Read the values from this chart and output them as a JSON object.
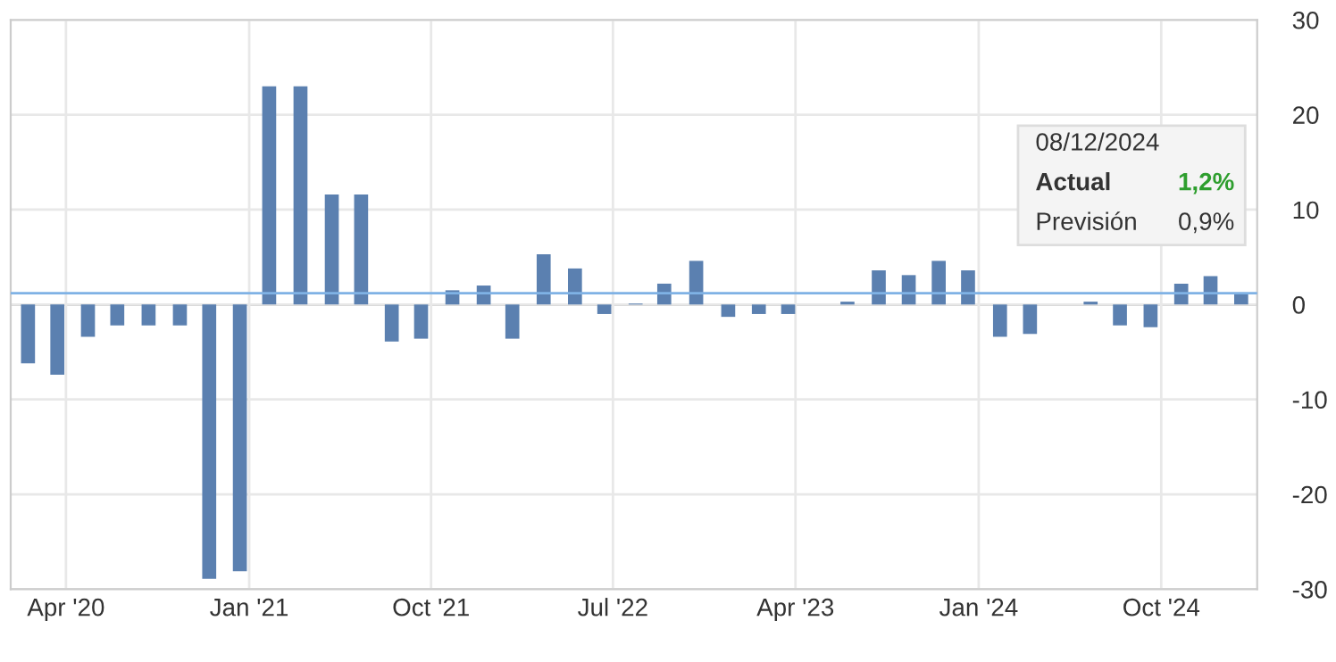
{
  "chart_data": {
    "type": "bar",
    "x": [
      "2020-02-04",
      "2020-03-19",
      "2020-05-04",
      "2020-06-17",
      "2020-08-03",
      "2020-09-19",
      "2020-11-02",
      "2020-12-18",
      "2021-01-31",
      "2021-03-19",
      "2021-05-05",
      "2021-06-18",
      "2021-08-03",
      "2021-09-16",
      "2021-11-02",
      "2021-12-19",
      "2022-01-31",
      "2022-03-19",
      "2022-05-05",
      "2022-06-18",
      "2022-08-04",
      "2022-09-16",
      "2022-11-03",
      "2022-12-21",
      "2023-02-05",
      "2023-03-21",
      "2023-05-05",
      "2023-06-18",
      "2023-08-04",
      "2023-09-18",
      "2023-11-02",
      "2023-12-16",
      "2024-02-02",
      "2024-03-18",
      "2024-05-03",
      "2024-06-17",
      "2024-07-31",
      "2024-09-15",
      "2024-10-31",
      "2024-12-14",
      "2025-01-29"
    ],
    "values": [
      -6.2,
      -7.4,
      -3.4,
      -2.2,
      -2.2,
      -2.2,
      -28.9,
      -28.1,
      23.0,
      23.0,
      11.6,
      11.6,
      -3.9,
      -3.6,
      1.5,
      2.0,
      -3.6,
      5.3,
      3.8,
      -1.0,
      0.1,
      2.2,
      4.6,
      -1.3,
      -1.0,
      -1.0,
      0,
      0.3,
      3.6,
      3.1,
      4.6,
      3.6,
      -3.4,
      -3.1,
      0,
      0.3,
      -2.2,
      -2.4,
      2.2,
      3.0,
      1.2
    ],
    "color": "#5b80b0",
    "xlim": [
      "2020-01-09",
      "2025-02-22"
    ],
    "xticks": [
      {
        "value": "2020-04-01",
        "label": "Apr '20"
      },
      {
        "value": "2021-01-01",
        "label": "Jan '21"
      },
      {
        "value": "2021-10-01",
        "label": "Oct '21"
      },
      {
        "value": "2022-07-01",
        "label": "Jul '22"
      },
      {
        "value": "2023-04-01",
        "label": "Apr '23"
      },
      {
        "value": "2024-01-01",
        "label": "Jan '24"
      },
      {
        "value": "2024-10-01",
        "label": "Oct '24"
      }
    ],
    "ylim": [
      -30,
      30
    ],
    "yticks": [
      -30,
      -20,
      -10,
      0,
      10,
      20,
      30
    ],
    "grid": true,
    "ref_lines": [
      {
        "axis": "y",
        "value": 1.2,
        "color": "#7fb2e5"
      }
    ],
    "annotations": [
      "08/12/2024",
      "Actual",
      "1,2%",
      "Previsión",
      "0,9%"
    ]
  }
}
